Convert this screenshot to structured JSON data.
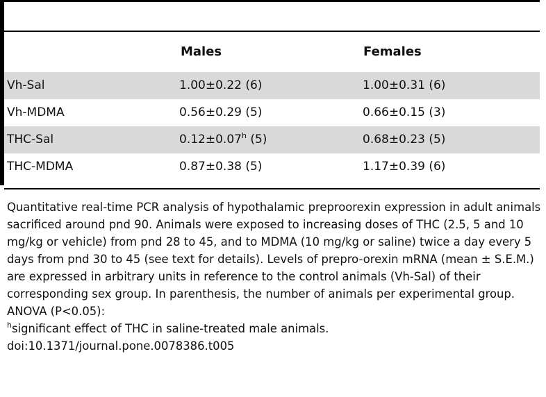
{
  "table": {
    "columns": [
      "",
      "Males",
      "Females"
    ],
    "rows": [
      {
        "group": "Vh-Sal",
        "males": "1.00±0.22 (6)",
        "males_sup": "",
        "males_n": "",
        "females": "1.00±0.31 (6)"
      },
      {
        "group": "Vh-MDMA",
        "males": "0.56±0.29 (5)",
        "males_sup": "",
        "males_n": "",
        "females": "0.66±0.15 (3)"
      },
      {
        "group": "THC-Sal",
        "males": "0.12±0.07",
        "males_sup": "h",
        "males_n": " (5)",
        "females": "0.68±0.23 (5)"
      },
      {
        "group": "THC-MDMA",
        "males": "0.87±0.38 (5)",
        "males_sup": "",
        "males_n": "",
        "females": "1.17±0.39 (6)"
      }
    ]
  },
  "caption": {
    "text": "Quantitative real-time PCR analysis of hypothalamic preproorexin expression in adult animals sacrificed around pnd 90. Animals were exposed to increasing doses of THC (2.5, 5 and 10 mg/kg or vehicle) from pnd 28 to 45, and to MDMA (10 mg/kg or saline) twice a day every 5 days from pnd 30 to 45 (see text for details). Levels of prepro-orexin mRNA (mean ± S.E.M.) are expressed in arbitrary units in reference to the control animals (Vh-Sal) of their corresponding sex group. In parenthesis, the number of animals per experimental group. ANOVA (P<0.05):",
    "footnote_mark": "h",
    "footnote_text": "significant effect of THC in saline-treated male animals.",
    "doi": "doi:10.1371/journal.pone.0078386.t005"
  }
}
